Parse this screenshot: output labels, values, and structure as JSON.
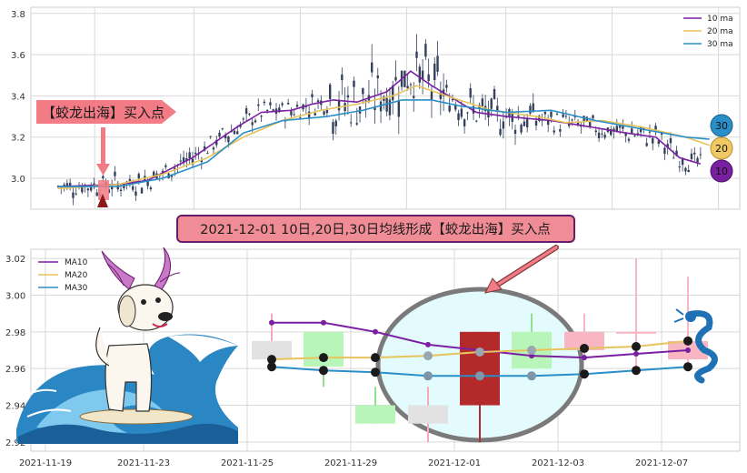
{
  "colors": {
    "ma10": "#7b1fa2",
    "ma20": "#e6c35c",
    "ma30": "#2a8fc8",
    "candle_body": "#34405c",
    "grid": "#d9d9d9",
    "callout_fill": "#f27b86",
    "banner_fill": "#f08c95",
    "banner_border": "#6a1b6a",
    "up_soft": "#b8f5b8",
    "down_soft": "#f7b6c2",
    "down_dark": "#b42a2a",
    "neutral_soft": "#e2e2e2",
    "ellipse_fill": "#e3fbfd",
    "ellipse_stroke": "#7a7a7a"
  },
  "icons": [
    "dragon-icon",
    "dog-surfer-icon",
    "wave-icon",
    "dragon-sea-icon"
  ],
  "top_chart": {
    "legend": [
      "10 ma",
      "20 ma",
      "30 ma"
    ],
    "yticks": [
      "3.8",
      "3.6",
      "3.4",
      "3.2",
      "3.0"
    ],
    "callout_text": "【蛟龙出海】买入点",
    "badges": [
      "30",
      "20",
      "10"
    ]
  },
  "banner_text": "2021-12-01 10日,20日,30日均线形成【蛟龙出海】买入点",
  "bottom_chart": {
    "legend": [
      "MA10",
      "MA20",
      "MA30"
    ],
    "yticks": [
      "3.02",
      "3.00",
      "2.98",
      "2.96",
      "2.94",
      "2.92"
    ],
    "xticks": [
      "2021-11-19",
      "2021-11-23",
      "2021-11-25",
      "2021-11-29",
      "2021-12-01",
      "2021-12-03",
      "2021-12-07"
    ]
  },
  "chart_data": [
    {
      "type": "line",
      "title": "",
      "ylim": [
        2.85,
        3.83
      ],
      "grid": true,
      "legend_position": "top-right",
      "x_count": 220,
      "series": [
        {
          "name": "10 ma",
          "anchors": [
            [
              0,
              2.96
            ],
            [
              20,
              2.97
            ],
            [
              30,
              2.99
            ],
            [
              45,
              3.1
            ],
            [
              60,
              3.25
            ],
            [
              68,
              3.32
            ],
            [
              78,
              3.33
            ],
            [
              85,
              3.36
            ],
            [
              92,
              3.38
            ],
            [
              100,
              3.37
            ],
            [
              110,
              3.42
            ],
            [
              118,
              3.52
            ],
            [
              125,
              3.45
            ],
            [
              140,
              3.32
            ],
            [
              150,
              3.3
            ],
            [
              165,
              3.28
            ],
            [
              178,
              3.25
            ],
            [
              190,
              3.22
            ],
            [
              200,
              3.2
            ],
            [
              208,
              3.1
            ],
            [
              215,
              3.07
            ]
          ]
        },
        {
          "name": "20 ma",
          "anchors": [
            [
              0,
              2.95
            ],
            [
              20,
              2.97
            ],
            [
              35,
              3.02
            ],
            [
              50,
              3.1
            ],
            [
              62,
              3.2
            ],
            [
              75,
              3.28
            ],
            [
              88,
              3.33
            ],
            [
              100,
              3.36
            ],
            [
              112,
              3.4
            ],
            [
              120,
              3.45
            ],
            [
              130,
              3.4
            ],
            [
              145,
              3.33
            ],
            [
              160,
              3.3
            ],
            [
              170,
              3.27
            ],
            [
              182,
              3.28
            ],
            [
              195,
              3.25
            ],
            [
              210,
              3.2
            ],
            [
              218,
              3.16
            ]
          ]
        },
        {
          "name": "30 ma",
          "anchors": [
            [
              0,
              2.96
            ],
            [
              20,
              2.96
            ],
            [
              35,
              3.0
            ],
            [
              50,
              3.08
            ],
            [
              62,
              3.22
            ],
            [
              75,
              3.28
            ],
            [
              90,
              3.3
            ],
            [
              102,
              3.33
            ],
            [
              115,
              3.38
            ],
            [
              125,
              3.38
            ],
            [
              135,
              3.35
            ],
            [
              150,
              3.32
            ],
            [
              165,
              3.33
            ],
            [
              180,
              3.28
            ],
            [
              195,
              3.24
            ],
            [
              210,
              3.2
            ],
            [
              218,
              3.19
            ]
          ]
        }
      ]
    },
    {
      "type": "candlestick",
      "title": "",
      "categories": [
        "2021-11-25",
        "2021-11-26",
        "2021-11-29",
        "2021-11-30",
        "2021-12-01",
        "2021-12-02",
        "2021-12-03",
        "2021-12-06",
        "2021-12-07"
      ],
      "xticks": [
        "2021-11-19",
        "2021-11-23",
        "2021-11-25",
        "2021-11-29",
        "2021-12-01",
        "2021-12-03",
        "2021-12-07"
      ],
      "ylim": [
        2.915,
        3.025
      ],
      "grid": true,
      "legend_position": "top-left",
      "candles": [
        {
          "open": 2.965,
          "close": 2.975,
          "high": 2.99,
          "low": 2.96,
          "color": "neutral"
        },
        {
          "open": 2.961,
          "close": 2.98,
          "high": 2.98,
          "low": 2.95,
          "color": "up"
        },
        {
          "open": 2.93,
          "close": 2.94,
          "high": 2.95,
          "low": 2.93,
          "color": "up"
        },
        {
          "open": 2.93,
          "close": 2.94,
          "high": 2.95,
          "low": 2.92,
          "color": "neutral"
        },
        {
          "open": 2.98,
          "close": 2.94,
          "high": 2.98,
          "low": 2.92,
          "color": "down"
        },
        {
          "open": 2.98,
          "close": 2.96,
          "high": 2.99,
          "low": 2.96,
          "color": "up"
        },
        {
          "open": 2.98,
          "close": 2.97,
          "high": 2.99,
          "low": 2.965,
          "color": "down_soft"
        },
        {
          "open": 2.98,
          "close": 2.98,
          "high": 3.02,
          "low": 2.96,
          "color": "down_soft"
        },
        {
          "open": 2.965,
          "close": 2.975,
          "high": 3.01,
          "low": 2.96,
          "color": "down_soft"
        }
      ],
      "series": [
        {
          "name": "MA10",
          "values": [
            2.985,
            2.985,
            2.98,
            2.973,
            2.97,
            2.967,
            2.966,
            2.968,
            2.97
          ]
        },
        {
          "name": "MA20",
          "values": [
            2.965,
            2.966,
            2.966,
            2.967,
            2.969,
            2.97,
            2.971,
            2.972,
            2.975
          ]
        },
        {
          "name": "MA30",
          "values": [
            2.961,
            2.959,
            2.958,
            2.956,
            2.956,
            2.956,
            2.957,
            2.959,
            2.961
          ]
        }
      ]
    }
  ]
}
